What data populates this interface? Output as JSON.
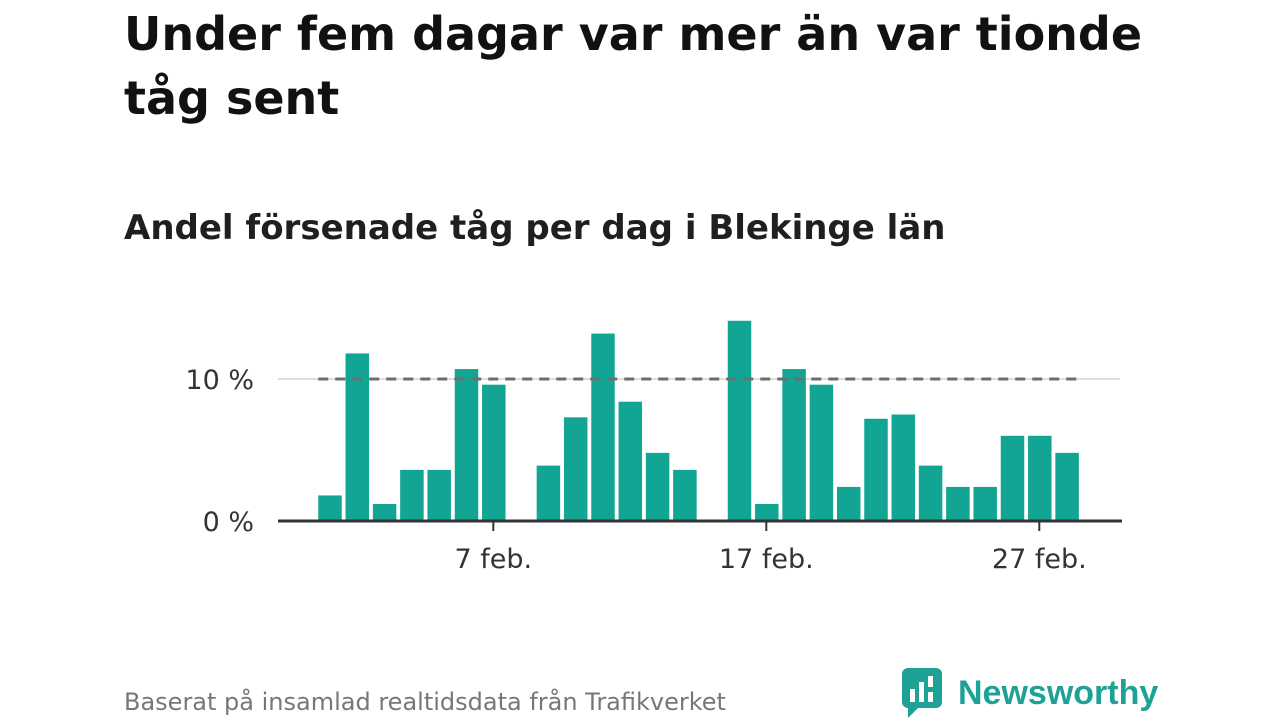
{
  "header": {
    "title": "Under fem dagar var mer än var tionde tåg sent",
    "subtitle": "Andel försenade tåg per dag i Blekinge län"
  },
  "footer": {
    "source": "Baserat på insamlad realtidsdata från Trafikverket",
    "brand": "Newsworthy"
  },
  "colors": {
    "bar": "#13a594",
    "reference_line": "#6e6e6e",
    "gridline": "#dddddd",
    "axis": "#333333",
    "brand": "#1fa296"
  },
  "chart_data": {
    "type": "bar",
    "title": "Andel försenade tåg per dag i Blekinge län",
    "x": [
      "1 feb.",
      "2 feb.",
      "3 feb.",
      "4 feb.",
      "5 feb.",
      "6 feb.",
      "7 feb.",
      "8 feb.",
      "9 feb.",
      "10 feb.",
      "11 feb.",
      "12 feb.",
      "13 feb.",
      "14 feb.",
      "15 feb.",
      "16 feb.",
      "17 feb.",
      "18 feb.",
      "19 feb.",
      "20 feb.",
      "21 feb.",
      "22 feb.",
      "23 feb.",
      "24 feb.",
      "25 feb.",
      "26 feb.",
      "27 feb.",
      "28 feb."
    ],
    "values": [
      1.8,
      11.8,
      1.2,
      3.6,
      3.6,
      10.7,
      9.6,
      0,
      3.9,
      7.3,
      13.2,
      8.4,
      4.8,
      3.6,
      0,
      14.1,
      1.2,
      10.7,
      9.6,
      2.4,
      7.2,
      7.5,
      3.9,
      2.4,
      2.4,
      6.0,
      6.0,
      4.8
    ],
    "reference_line": 10,
    "y_ticks": [
      {
        "value": 0,
        "label": "0 %"
      },
      {
        "value": 10,
        "label": "10 %"
      }
    ],
    "x_ticks": [
      "7 feb.",
      "17 feb.",
      "27 feb."
    ],
    "ylim": [
      0,
      14.5
    ],
    "xlabel": "",
    "ylabel": "",
    "grid": true,
    "unit": "%"
  }
}
